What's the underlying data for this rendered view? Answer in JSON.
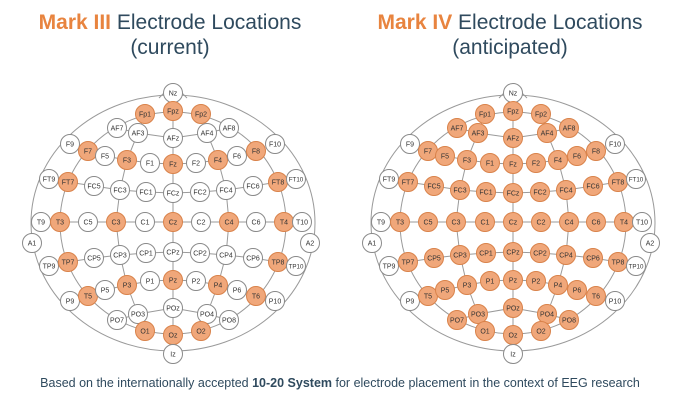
{
  "titles": {
    "left": {
      "mark": "Mark III",
      "rest": "Electrode Locations",
      "sub": "(current)"
    },
    "right": {
      "mark": "Mark IV",
      "rest": "Electrode Locations",
      "sub": "(anticipated)"
    }
  },
  "caption": {
    "before": "Based on the internationally accepted ",
    "bold": "10-20 System",
    "after": " for electrode placement in the context of EEG research"
  },
  "colors": {
    "active_fill": "#f0a77a",
    "active_stroke": "#d9824a",
    "inactive_fill": "#ffffff",
    "inactive_stroke": "#8a8a8a",
    "line": "#9a9a9a",
    "accent": "#e8843f",
    "text": "#2f4a5e"
  },
  "electrodes": {
    "Nz": {},
    "Fp1": {},
    "Fpz": {},
    "Fp2": {},
    "AF7": {},
    "AF3": {},
    "AFz": {},
    "AF4": {},
    "AF8": {},
    "F9": {},
    "F7": {},
    "F5": {},
    "F3": {},
    "F1": {},
    "Fz": {},
    "F2": {},
    "F4": {},
    "F6": {},
    "F8": {},
    "F10": {},
    "FT9": {},
    "FT7": {},
    "FC5": {},
    "FC3": {},
    "FC1": {},
    "FCz": {},
    "FC2": {},
    "FC4": {},
    "FC6": {},
    "FT8": {},
    "FT10": {},
    "A1": {},
    "T9": {},
    "T3": {},
    "C5": {},
    "C3": {},
    "C1": {},
    "Cz": {},
    "C2": {},
    "C4": {},
    "C6": {},
    "T4": {},
    "T10": {},
    "A2": {},
    "TP9": {},
    "TP7": {},
    "CP5": {},
    "CP3": {},
    "CP1": {},
    "CPz": {},
    "CP2": {},
    "CP4": {},
    "CP6": {},
    "TP8": {},
    "TP10": {},
    "P9": {},
    "T5": {},
    "P5": {},
    "P3": {},
    "P1": {},
    "Pz": {},
    "P2": {},
    "P4": {},
    "P6": {},
    "T6": {},
    "P10": {},
    "PO7": {},
    "PO3": {},
    "POz": {},
    "PO4": {},
    "PO8": {},
    "O1": {},
    "Oz": {},
    "O2": {},
    "Iz": {}
  },
  "montages": {
    "mark3_active": [
      "Fp1",
      "Fpz",
      "Fp2",
      "F7",
      "F3",
      "Fz",
      "F4",
      "F8",
      "FT7",
      "FT8",
      "T3",
      "C3",
      "Cz",
      "C4",
      "T4",
      "TP7",
      "TP8",
      "Pz",
      "P3",
      "P4",
      "T5",
      "T6",
      "O1",
      "Oz",
      "O2"
    ],
    "mark4_active": [
      "Fp1",
      "Fpz",
      "Fp2",
      "AF7",
      "AF3",
      "AFz",
      "AF4",
      "AF8",
      "F7",
      "F5",
      "F3",
      "F1",
      "Fz",
      "F2",
      "F4",
      "F6",
      "F8",
      "FT7",
      "FC5",
      "FC3",
      "FC1",
      "FCz",
      "FC2",
      "FC4",
      "FC6",
      "FT8",
      "T3",
      "C5",
      "C3",
      "C1",
      "Cz",
      "C2",
      "C4",
      "C6",
      "T4",
      "TP7",
      "CP5",
      "CP3",
      "CP1",
      "CPz",
      "CP2",
      "CP4",
      "CP6",
      "TP8",
      "T5",
      "P5",
      "P3",
      "P1",
      "Pz",
      "P2",
      "P4",
      "P6",
      "T6",
      "PO7",
      "PO3",
      "POz",
      "PO4",
      "PO8",
      "O1",
      "Oz",
      "O2"
    ]
  }
}
